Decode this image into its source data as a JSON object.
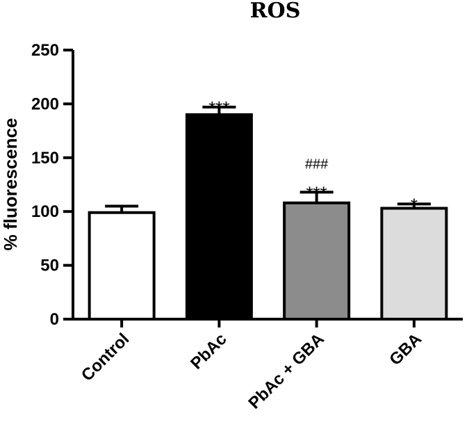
{
  "chart_data": {
    "type": "bar",
    "title": "ROS",
    "xlabel": "",
    "ylabel": "% fluorescence",
    "ylim": [
      0,
      250
    ],
    "yticks": [
      0,
      50,
      100,
      150,
      200,
      250
    ],
    "categories": [
      "Control",
      "PbAc",
      "PbAc + GBA",
      "GBA"
    ],
    "values": [
      99,
      190,
      108,
      103
    ],
    "errors": [
      6,
      7,
      10,
      4
    ],
    "bar_colors": [
      "#ffffff",
      "#000000",
      "#8c8c8c",
      "#dcdcdc"
    ],
    "annotations": [
      {
        "category": "PbAc",
        "lines": [
          "***"
        ]
      },
      {
        "category": "PbAc + GBA",
        "lines": [
          "###",
          "***"
        ]
      },
      {
        "category": "GBA",
        "lines": [
          "*"
        ]
      }
    ],
    "grid": false,
    "legend": "none"
  }
}
